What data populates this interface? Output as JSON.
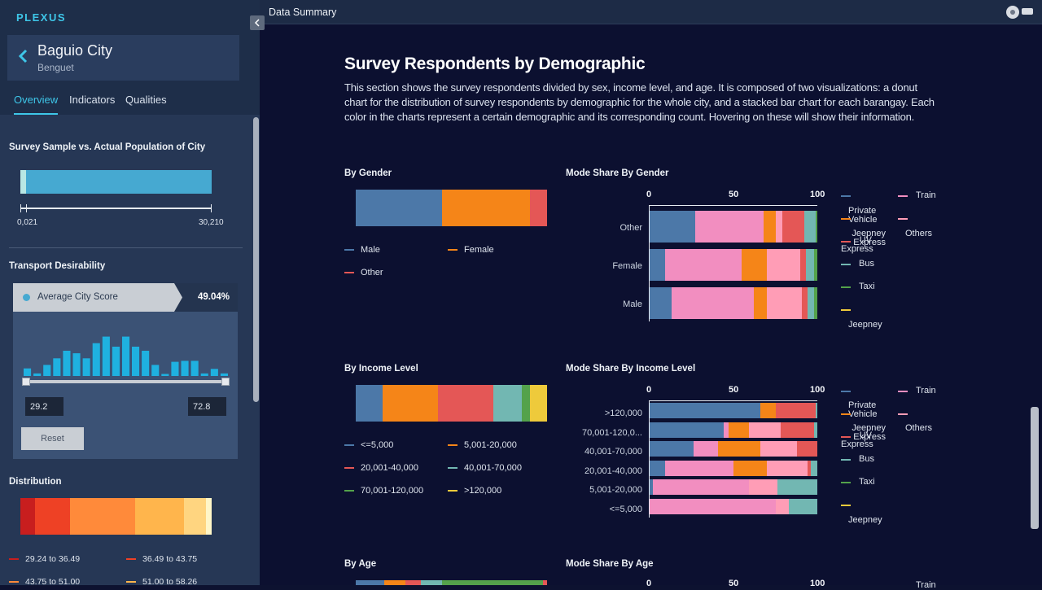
{
  "app": {
    "brand": "PLEXUS"
  },
  "city": {
    "name": "Baguio City",
    "province": "Benguet"
  },
  "tabs": [
    "Overview",
    "Indicators",
    "Qualities"
  ],
  "sample_section": {
    "title": "Survey Sample vs. Actual Population of City",
    "min_label": "0,021",
    "max_label": "30,210",
    "sample_fraction": 0.03
  },
  "transport": {
    "title": "Transport Desirability",
    "score_label": "Average City Score",
    "score_value": "49.04%",
    "histogram": [
      0.15,
      0.05,
      0.22,
      0.35,
      0.5,
      0.45,
      0.35,
      0.65,
      0.78,
      0.58,
      0.78,
      0.58,
      0.5,
      0.22,
      0.04,
      0.28,
      0.3,
      0.3,
      0.05,
      0.14,
      0.05
    ],
    "range_min": "29.2",
    "range_max": "72.8",
    "reset_label": "Reset"
  },
  "distribution": {
    "title": "Distribution",
    "bands": [
      {
        "color": "#c81e1e",
        "share": 0.075
      },
      {
        "color": "#ee4125",
        "share": 0.185
      },
      {
        "color": "#ff8a3a",
        "share": 0.34
      },
      {
        "color": "#ffb54c",
        "share": 0.255
      },
      {
        "color": "#ffd580",
        "share": 0.115
      },
      {
        "color": "#fff6c8",
        "share": 0.03
      }
    ],
    "legend": [
      {
        "label": "29.24 to 36.49",
        "color": "#c81e1e"
      },
      {
        "label": "36.49 to 43.75",
        "color": "#ee4125"
      },
      {
        "label": "43.75 to 51.00",
        "color": "#ff8a3a"
      },
      {
        "label": "51.00 to 58.26",
        "color": "#ffb54c"
      }
    ]
  },
  "header": {
    "title": "Data Summary"
  },
  "section": {
    "title": "Survey Respondents by Demographic",
    "description": "This section shows the survey respondents divided by sex, income level, and age. It is composed of two visualizations: a donut chart for the distribution of survey respondents by demographic for the whole city, and a stacked bar chart for each barangay. Each color in the charts represent a certain demographic and its corresponding count. Hovering on these will show their information."
  },
  "mode_legend": [
    {
      "label": "Private Vehicle",
      "color": "#4c78a8"
    },
    {
      "label": "Train",
      "color": "#f28ec0"
    },
    {
      "label": "Jeepney Express",
      "color": "#f58518"
    },
    {
      "label": "Others",
      "color": "#ff9db6"
    },
    {
      "label": "UV Express",
      "color": "#e45756"
    },
    {
      "label": "Bus",
      "color": "#72b7b2"
    },
    {
      "label": "Taxi",
      "color": "#54a24b"
    },
    {
      "label": "Jeepney",
      "color": "#eeca3b"
    }
  ],
  "gender": {
    "title": "By Gender",
    "segments": [
      {
        "label": "Male",
        "color": "#4c78a8",
        "value": 45
      },
      {
        "label": "Female",
        "color": "#f58518",
        "value": 46
      },
      {
        "label": "Other",
        "color": "#e45756",
        "value": 9
      }
    ],
    "mode_title": "Mode Share By Gender",
    "axis": [
      "0",
      "50",
      "100"
    ],
    "mode_rows": [
      {
        "label": "Other",
        "values": [
          27,
          41,
          7,
          4,
          13,
          7,
          1,
          0
        ]
      },
      {
        "label": "Female",
        "values": [
          9,
          46,
          15,
          20,
          3,
          5,
          2,
          0
        ]
      },
      {
        "label": "Male",
        "values": [
          13,
          49,
          8,
          21,
          3,
          4,
          2,
          0
        ]
      }
    ]
  },
  "income": {
    "title": "By Income Level",
    "segments": [
      {
        "label": "<=5,000",
        "color": "#4c78a8",
        "value": 14
      },
      {
        "label": "5,001-20,000",
        "color": "#f58518",
        "value": 29
      },
      {
        "label": "20,001-40,000",
        "color": "#e45756",
        "value": 29
      },
      {
        "label": "40,001-70,000",
        "color": "#72b7b2",
        "value": 15
      },
      {
        "label": "70,001-120,000",
        "color": "#54a24b",
        "value": 4
      },
      {
        "label": ">120,000",
        "color": "#eeca3b",
        "value": 9
      }
    ],
    "mode_title": "Mode Share By Income Level",
    "axis": [
      "0",
      "50",
      "100"
    ],
    "mode_rows": [
      {
        "label": ">120,000",
        "values": [
          66,
          0,
          9,
          0,
          24,
          1,
          0,
          0
        ]
      },
      {
        "label": "70,001-120,0...",
        "values": [
          44,
          3,
          12,
          19,
          20,
          2,
          0,
          0
        ]
      },
      {
        "label": "40,001-70,000",
        "values": [
          26,
          15,
          25,
          22,
          12,
          0,
          0,
          0
        ]
      },
      {
        "label": "20,001-40,000",
        "values": [
          9,
          41,
          20,
          24,
          2,
          4,
          0,
          0
        ]
      },
      {
        "label": "5,001-20,000",
        "values": [
          2,
          57,
          0,
          17,
          0,
          24,
          0,
          0
        ]
      },
      {
        "label": "<=5,000",
        "values": [
          0,
          75,
          0,
          8,
          0,
          17,
          0,
          0
        ]
      }
    ]
  },
  "age": {
    "title": "By Age",
    "segments": [
      {
        "color": "#4c78a8",
        "value": 15
      },
      {
        "color": "#f58518",
        "value": 11
      },
      {
        "color": "#e45756",
        "value": 8
      },
      {
        "color": "#72b7b2",
        "value": 11
      },
      {
        "color": "#54a24b",
        "value": 53
      },
      {
        "color": "#e45756",
        "value": 2
      }
    ],
    "mode_title": "Mode Share By Age",
    "axis": [
      "0",
      "50",
      "100"
    ],
    "legend_first": "Train"
  }
}
